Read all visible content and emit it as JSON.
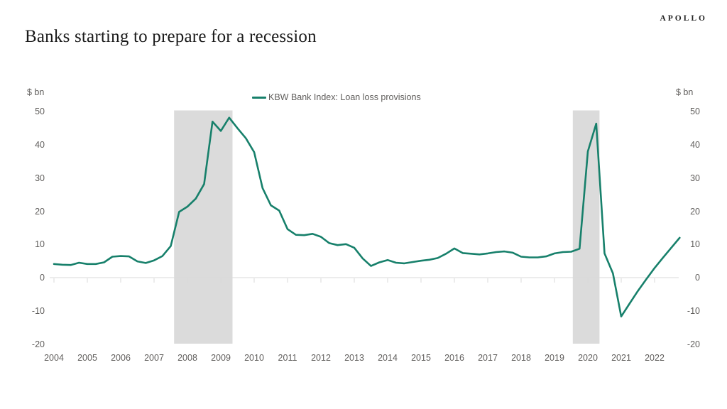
{
  "header": {
    "logo_text": "APOLLO",
    "title": "Banks starting to prepare for a recession"
  },
  "chart_data": {
    "type": "line",
    "title": "Banks starting to prepare for a recession",
    "x_label": "",
    "y_label": "$ bn",
    "unit": "$ bn",
    "legend_label": "KBW Bank Index: Loan loss provisions",
    "legend_position": "top-center",
    "grid": "zero-line-only",
    "ylim": [
      -20,
      50
    ],
    "xlim": [
      2004,
      2023
    ],
    "y_ticks": [
      50,
      40,
      30,
      20,
      10,
      0,
      -10,
      -20
    ],
    "x_ticks": [
      2004,
      2005,
      2006,
      2007,
      2008,
      2009,
      2010,
      2011,
      2012,
      2013,
      2014,
      2015,
      2016,
      2017,
      2018,
      2019,
      2020,
      2021,
      2022
    ],
    "colors": {
      "line": "#17806B",
      "recession_band": "#DBDBDB",
      "gridline": "#D9D9D9",
      "axis_text": "#605E5C",
      "title_text": "#1A1A1A"
    },
    "recession_bands": [
      {
        "from_year": 2007.6,
        "to_year": 2009.35
      },
      {
        "from_year": 2019.55,
        "to_year": 2020.35
      }
    ],
    "x_start": 2004.0,
    "points_per_year": 4,
    "frequency": "quarterly",
    "series": [
      {
        "name": "KBW Bank Index: Loan loss provisions",
        "color": "#17806B",
        "values": [
          4.1,
          3.9,
          3.8,
          4.5,
          4.1,
          4.1,
          4.6,
          6.3,
          6.5,
          6.4,
          4.9,
          4.4,
          5.2,
          6.5,
          9.5,
          19.8,
          21.4,
          23.8,
          28.2,
          47.0,
          44.2,
          48.2,
          45.0,
          42.0,
          37.8,
          27.0,
          21.8,
          20.2,
          14.6,
          12.9,
          12.8,
          13.2,
          12.3,
          10.4,
          9.8,
          10.1,
          9.0,
          5.8,
          3.5,
          4.6,
          5.3,
          4.5,
          4.3,
          4.7,
          5.1,
          5.4,
          5.9,
          7.2,
          8.8,
          7.4,
          7.2,
          7.0,
          7.3,
          7.7,
          7.9,
          7.5,
          6.3,
          6.1,
          6.1,
          6.4,
          7.3,
          7.7,
          7.8,
          8.7,
          38.0,
          46.4,
          7.3,
          1.3,
          -11.7,
          -7.8,
          -4.0,
          -0.5,
          2.9,
          6.0,
          9.0,
          12.0
        ]
      }
    ]
  }
}
